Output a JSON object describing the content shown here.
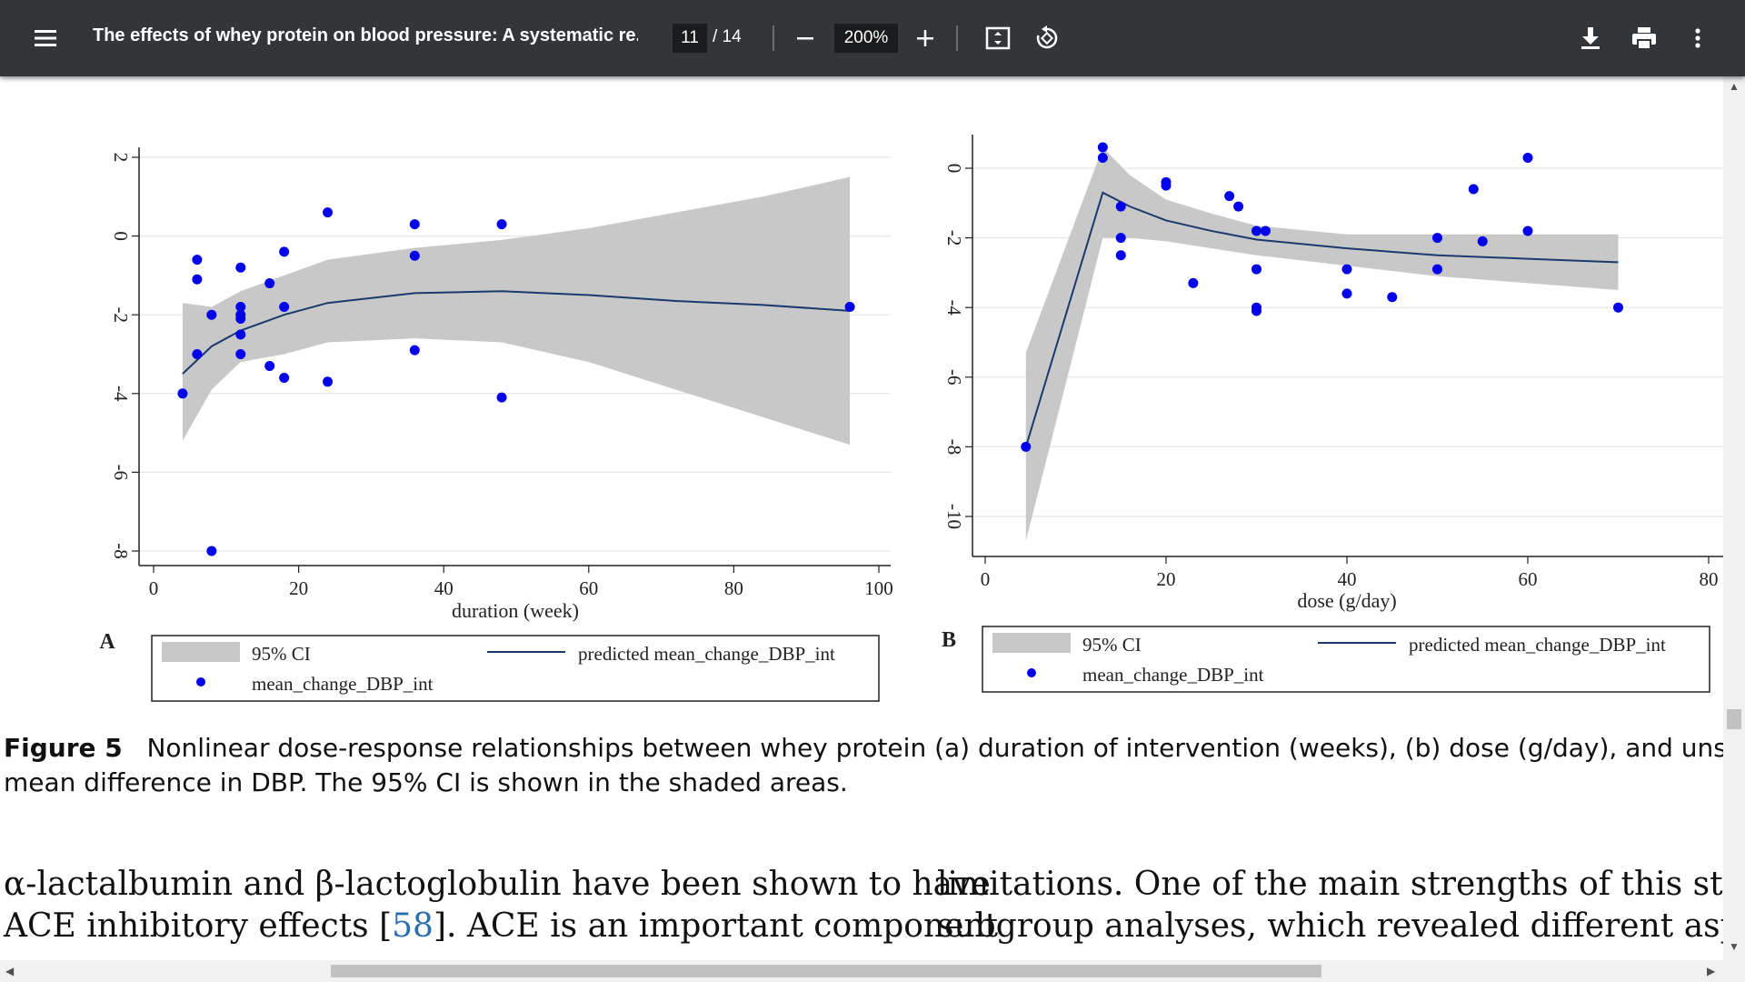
{
  "toolbar": {
    "title": "The effects of whey protein on blood pressure: A systematic re...",
    "current_page": "11",
    "total_pages": "/ 14",
    "zoom": "200%"
  },
  "caption": {
    "label": "Figure 5",
    "line1": "Nonlinear dose-response relationships between whey protein (a) duration of intervention (weeks), (b) dose (g/day), and unstanda",
    "line2": "mean difference in DBP. The 95% CI is shown in the shaded areas."
  },
  "body": {
    "left_line1": "α-lactalbumin and β-lactoglobulin have been shown to have",
    "left_line2_a": "ACE inhibitory effects [",
    "left_line2_ref": "58",
    "left_line2_b": "]. ACE is an important component",
    "right_line1": "limitations. One of the main strengths of this study",
    "right_line2": "subgroup analyses, which revealed different aspects o"
  },
  "chart_data": [
    {
      "type": "scatter",
      "panel": "A",
      "xlabel": "duration (week)",
      "ylabel": "",
      "xlim": [
        0,
        100
      ],
      "ylim": [
        -8,
        2
      ],
      "xticks": [
        "0",
        "20",
        "40",
        "60",
        "80",
        "100"
      ],
      "yticks": [
        "2",
        "0",
        "-2",
        "-4",
        "-6",
        "-8"
      ],
      "points": [
        {
          "x": 4,
          "y": -4.0
        },
        {
          "x": 6,
          "y": -3.0
        },
        {
          "x": 6,
          "y": -0.6
        },
        {
          "x": 6,
          "y": -1.1
        },
        {
          "x": 8,
          "y": -2.0
        },
        {
          "x": 8,
          "y": -8.0
        },
        {
          "x": 12,
          "y": -0.8
        },
        {
          "x": 12,
          "y": -1.8
        },
        {
          "x": 12,
          "y": -2.0
        },
        {
          "x": 12,
          "y": -2.1
        },
        {
          "x": 12,
          "y": -2.5
        },
        {
          "x": 12,
          "y": -3.0
        },
        {
          "x": 16,
          "y": -1.2
        },
        {
          "x": 16,
          "y": -3.3
        },
        {
          "x": 18,
          "y": -0.4
        },
        {
          "x": 18,
          "y": -1.8
        },
        {
          "x": 18,
          "y": -3.6
        },
        {
          "x": 24,
          "y": 0.6
        },
        {
          "x": 24,
          "y": -3.7
        },
        {
          "x": 36,
          "y": 0.3
        },
        {
          "x": 36,
          "y": -0.5
        },
        {
          "x": 36,
          "y": -2.9
        },
        {
          "x": 48,
          "y": 0.3
        },
        {
          "x": 48,
          "y": -4.1
        },
        {
          "x": 96,
          "y": -1.8
        }
      ],
      "fit": [
        {
          "x": 4,
          "y": -3.5
        },
        {
          "x": 8,
          "y": -2.8
        },
        {
          "x": 12,
          "y": -2.4
        },
        {
          "x": 18,
          "y": -2.0
        },
        {
          "x": 24,
          "y": -1.7
        },
        {
          "x": 36,
          "y": -1.45
        },
        {
          "x": 48,
          "y": -1.4
        },
        {
          "x": 60,
          "y": -1.5
        },
        {
          "x": 72,
          "y": -1.65
        },
        {
          "x": 84,
          "y": -1.75
        },
        {
          "x": 96,
          "y": -1.9
        }
      ],
      "ci_upper": [
        {
          "x": 4,
          "y": -1.7
        },
        {
          "x": 8,
          "y": -1.8
        },
        {
          "x": 12,
          "y": -1.4
        },
        {
          "x": 18,
          "y": -1.0
        },
        {
          "x": 24,
          "y": -0.6
        },
        {
          "x": 36,
          "y": -0.3
        },
        {
          "x": 48,
          "y": -0.1
        },
        {
          "x": 60,
          "y": 0.2
        },
        {
          "x": 72,
          "y": 0.6
        },
        {
          "x": 84,
          "y": 1.0
        },
        {
          "x": 96,
          "y": 1.5
        }
      ],
      "ci_lower": [
        {
          "x": 4,
          "y": -5.2
        },
        {
          "x": 8,
          "y": -3.9
        },
        {
          "x": 12,
          "y": -3.2
        },
        {
          "x": 18,
          "y": -3.0
        },
        {
          "x": 24,
          "y": -2.7
        },
        {
          "x": 36,
          "y": -2.6
        },
        {
          "x": 48,
          "y": -2.7
        },
        {
          "x": 60,
          "y": -3.2
        },
        {
          "x": 72,
          "y": -3.9
        },
        {
          "x": 84,
          "y": -4.6
        },
        {
          "x": 96,
          "y": -5.3
        }
      ],
      "legend": {
        "ci": "95% CI",
        "fit": "predicted mean_change_DBP_int",
        "points": "mean_change_DBP_int"
      }
    },
    {
      "type": "scatter",
      "panel": "B",
      "xlabel": "dose (g/day)",
      "ylabel": "",
      "xlim": [
        0,
        80
      ],
      "ylim": [
        -10,
        0
      ],
      "xticks": [
        "0",
        "20",
        "40",
        "60",
        "80"
      ],
      "yticks": [
        "0",
        "-2",
        "-4",
        "-6",
        "-8",
        "-10"
      ],
      "points": [
        {
          "x": 4.5,
          "y": -8.0
        },
        {
          "x": 13,
          "y": 0.6
        },
        {
          "x": 13,
          "y": 0.3
        },
        {
          "x": 15,
          "y": -1.1
        },
        {
          "x": 15,
          "y": -2.0
        },
        {
          "x": 15,
          "y": -2.5
        },
        {
          "x": 20,
          "y": -0.4
        },
        {
          "x": 20,
          "y": -0.5
        },
        {
          "x": 23,
          "y": -3.3
        },
        {
          "x": 27,
          "y": -0.8
        },
        {
          "x": 28,
          "y": -1.1
        },
        {
          "x": 30,
          "y": -1.8
        },
        {
          "x": 30,
          "y": -2.9
        },
        {
          "x": 30,
          "y": -4.0
        },
        {
          "x": 30,
          "y": -4.1
        },
        {
          "x": 31,
          "y": -1.8
        },
        {
          "x": 40,
          "y": -2.9
        },
        {
          "x": 40,
          "y": -3.6
        },
        {
          "x": 45,
          "y": -3.7
        },
        {
          "x": 50,
          "y": -2.0
        },
        {
          "x": 50,
          "y": -2.9
        },
        {
          "x": 54,
          "y": -0.6
        },
        {
          "x": 55,
          "y": -2.1
        },
        {
          "x": 60,
          "y": 0.3
        },
        {
          "x": 60,
          "y": -1.8
        },
        {
          "x": 70,
          "y": -4.0
        }
      ],
      "fit": [
        {
          "x": 4.5,
          "y": -8.0
        },
        {
          "x": 13,
          "y": -0.7
        },
        {
          "x": 16,
          "y": -1.1
        },
        {
          "x": 20,
          "y": -1.5
        },
        {
          "x": 25,
          "y": -1.8
        },
        {
          "x": 30,
          "y": -2.05
        },
        {
          "x": 40,
          "y": -2.3
        },
        {
          "x": 50,
          "y": -2.5
        },
        {
          "x": 60,
          "y": -2.6
        },
        {
          "x": 70,
          "y": -2.7
        }
      ],
      "ci_upper": [
        {
          "x": 4.5,
          "y": -5.3
        },
        {
          "x": 13,
          "y": 0.6
        },
        {
          "x": 16,
          "y": -0.2
        },
        {
          "x": 20,
          "y": -0.9
        },
        {
          "x": 25,
          "y": -1.3
        },
        {
          "x": 30,
          "y": -1.65
        },
        {
          "x": 40,
          "y": -1.9
        },
        {
          "x": 50,
          "y": -1.9
        },
        {
          "x": 60,
          "y": -1.9
        },
        {
          "x": 70,
          "y": -1.9
        }
      ],
      "ci_lower": [
        {
          "x": 4.5,
          "y": -10.7
        },
        {
          "x": 13,
          "y": -2.0
        },
        {
          "x": 16,
          "y": -2.0
        },
        {
          "x": 20,
          "y": -2.1
        },
        {
          "x": 25,
          "y": -2.3
        },
        {
          "x": 30,
          "y": -2.5
        },
        {
          "x": 40,
          "y": -2.8
        },
        {
          "x": 50,
          "y": -3.1
        },
        {
          "x": 60,
          "y": -3.3
        },
        {
          "x": 70,
          "y": -3.5
        }
      ],
      "legend": {
        "ci": "95% CI",
        "fit": "predicted mean_change_DBP_int",
        "points": "mean_change_DBP_int"
      }
    }
  ],
  "colors": {
    "toolbar_bg": "#323639",
    "point": "#0000ee",
    "fit_line": "#1a3a6e",
    "ci_fill": "#c8c8c8",
    "link": "#2a6fb0"
  }
}
